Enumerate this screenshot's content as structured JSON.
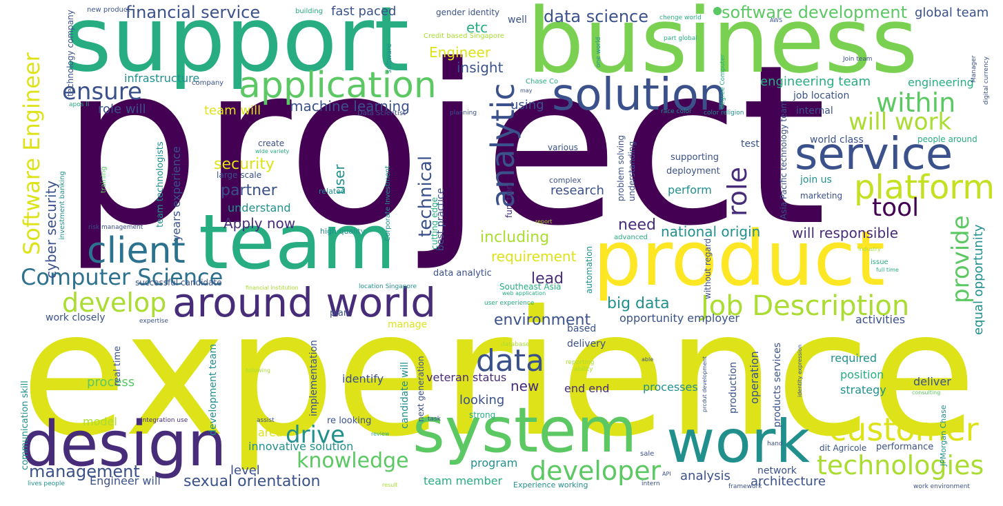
{
  "palette": {
    "dark_purple": "#440154",
    "purple": "#472c7a",
    "indigo": "#3b518b",
    "blue": "#2c718e",
    "teal": "#21908d",
    "green": "#27ad81",
    "light_green": "#5cc863",
    "lime": "#aadc32",
    "yellow": "#dde318",
    "background": "#ffffff"
  },
  "words": [
    "project",
    "experience",
    "support",
    "business",
    "team",
    "product",
    "system",
    "design",
    "work",
    "around world",
    "service",
    "solution",
    "application",
    "client",
    "platform",
    "customer",
    "data",
    "analytic",
    "technologies",
    "Job Description",
    "Software Engineer",
    "developer",
    "develop",
    "provide",
    "Computer Science",
    "tool",
    "role",
    "within",
    "will work",
    "drive",
    "knowledge",
    "ensure",
    "financial service",
    "software development",
    "data science",
    "management",
    "sexual orientation",
    "machine learning",
    "technical",
    "security",
    "cyber security",
    "partner",
    "including",
    "requirement",
    "lead",
    "environment",
    "big data",
    "opportunity employer",
    "national origin",
    "will responsible",
    "need",
    "Engineer",
    "insight",
    "engineering team",
    "fast paced",
    "global team",
    "etc",
    "equal opportunity",
    "Apply now",
    "understand",
    "user",
    "infrastructure",
    "technology company",
    "years experience",
    "team technologists",
    "team will",
    "role will",
    "using",
    "research",
    "perform",
    "process",
    "model",
    "area",
    "level",
    "innovative solution",
    "team member",
    "Engineer will",
    "network",
    "architecture",
    "analysis",
    "program",
    "new",
    "looking",
    "identify",
    "veteran status",
    "end end",
    "processes",
    "position",
    "strategy",
    "deliver",
    "required",
    "activities",
    "delivery",
    "based",
    "manage",
    "work closely",
    "communication skill",
    "development team",
    "real time",
    "implementation",
    "candidate will",
    "next generation",
    "operation",
    "products services",
    "production",
    "job location",
    "internal",
    "test",
    "world class",
    "deployment",
    "supporting",
    "join us",
    "marketing",
    "engineering",
    "well",
    "gender identity",
    "building",
    "new product",
    "Data Scientist",
    "create",
    "large scale",
    "related",
    "high quality",
    "investment banking",
    "risk management",
    "training",
    "successful candidate",
    "financial institution",
    "location Singapore",
    "Southeast Asia",
    "web application",
    "user experience",
    "data analytic",
    "plan",
    "expertise",
    "best practice",
    "cutting edge",
    "Corporate Investment",
    "function",
    "automation",
    "without regard",
    "problem solving",
    "understanding",
    "Asia Pacific technology team",
    "people around",
    "various",
    "complex",
    "advanced",
    "report",
    "issue",
    "full time",
    "industry",
    "Credit based Singapore",
    "software",
    "company",
    "Chase Co",
    "may",
    "planning",
    "race color",
    "color religion",
    "degree Computer",
    "one world",
    "part global",
    "chenge world",
    "AWS",
    "Join team",
    "Manager",
    "digital currency",
    "apos ll",
    "wide variety",
    "integration use",
    "assist",
    "re looking",
    "review",
    "task",
    "strong",
    "database",
    "reporting",
    "ability",
    "able",
    "following",
    "prcdut development",
    "identity expression",
    "consulting",
    "JPMorgan Chase",
    "dit Agricole",
    "performance",
    "hand",
    "sale",
    "API",
    "intern",
    "framework",
    "work environment",
    "result",
    "lives people",
    "Experience working",
    "technologies"
  ]
}
